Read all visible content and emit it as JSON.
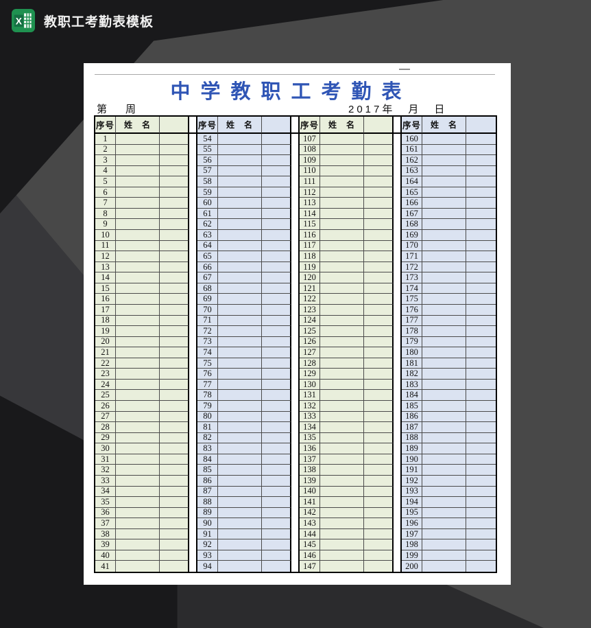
{
  "window": {
    "title": "教职工考勤表模板",
    "app_icon": "excel-icon",
    "icon_color": "#1f9150"
  },
  "sheet": {
    "title": "中学教职工考勤表",
    "week_label": "第　周",
    "date_label": "2017年　月　日",
    "column_headers": {
      "index_label": "序号",
      "name_label": "姓　名"
    },
    "colors": {
      "group_green": "#e9efdc",
      "group_blue": "#dbe3f1",
      "title_blue": "#2f55b5",
      "grid_line": "#4a4a4a",
      "heavy_line": "#000000"
    },
    "groups": [
      {
        "fill": "green",
        "numbers": [
          1,
          2,
          3,
          4,
          5,
          6,
          7,
          8,
          9,
          10,
          11,
          12,
          13,
          14,
          15,
          16,
          17,
          18,
          19,
          20,
          21,
          22,
          23,
          24,
          25,
          26,
          27,
          28,
          29,
          30,
          31,
          32,
          33,
          34,
          35,
          36,
          37,
          38,
          39,
          40,
          41
        ]
      },
      {
        "fill": "blue",
        "numbers": [
          54,
          55,
          56,
          57,
          58,
          59,
          60,
          61,
          62,
          63,
          64,
          65,
          66,
          67,
          68,
          69,
          70,
          71,
          72,
          73,
          74,
          75,
          76,
          77,
          78,
          79,
          80,
          81,
          82,
          83,
          84,
          85,
          86,
          87,
          88,
          89,
          90,
          91,
          92,
          93,
          94
        ]
      },
      {
        "fill": "green",
        "numbers": [
          107,
          108,
          109,
          110,
          111,
          112,
          113,
          114,
          115,
          116,
          117,
          118,
          119,
          120,
          121,
          122,
          123,
          124,
          125,
          126,
          127,
          128,
          129,
          130,
          131,
          132,
          133,
          134,
          135,
          136,
          137,
          138,
          139,
          140,
          141,
          142,
          143,
          144,
          145,
          146,
          147
        ]
      },
      {
        "fill": "blue",
        "numbers": [
          160,
          161,
          162,
          163,
          164,
          165,
          166,
          167,
          168,
          169,
          170,
          171,
          172,
          173,
          174,
          175,
          176,
          177,
          178,
          179,
          180,
          181,
          182,
          183,
          184,
          185,
          186,
          187,
          188,
          189,
          190,
          191,
          192,
          193,
          194,
          195,
          196,
          197,
          198,
          199,
          200
        ]
      }
    ],
    "visible_rows": 41
  }
}
